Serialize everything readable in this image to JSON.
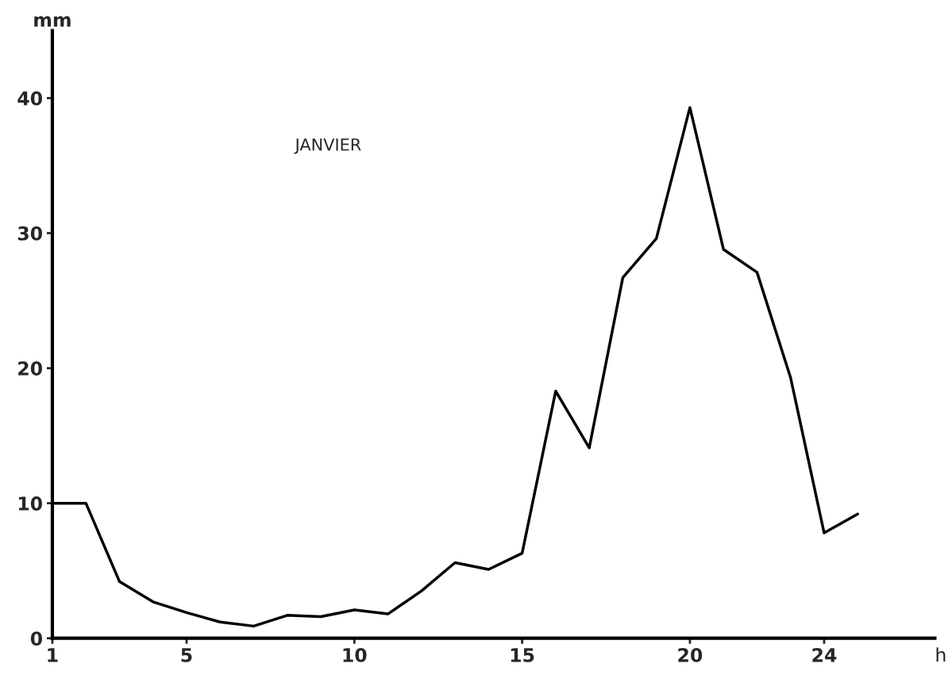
{
  "chart_data": {
    "type": "line",
    "ylabel": "mm",
    "xlabel": "h",
    "annotations": [
      "JANVIER"
    ],
    "x": [
      1,
      2,
      3,
      4,
      5,
      6,
      7,
      8,
      9,
      10,
      11,
      12,
      13,
      14,
      15,
      16,
      17,
      18,
      19,
      20,
      21,
      22,
      23,
      24,
      25
    ],
    "series": [
      {
        "color": "#000000",
        "values": [
          10,
          10,
          4.2,
          2.7,
          1.9,
          1.2,
          0.9,
          1.7,
          1.6,
          2.1,
          1.8,
          3.5,
          5.6,
          5.1,
          6.3,
          18.3,
          14.1,
          26.7,
          29.6,
          39.3,
          28.8,
          27.1,
          19.3,
          7.8,
          9.2
        ]
      }
    ],
    "xlim": [
      1,
      27.3
    ],
    "ylim": [
      0,
      45
    ],
    "xticks": [
      1,
      5,
      10,
      15,
      20,
      24
    ],
    "yticks": [
      0,
      10,
      20,
      30,
      40
    ],
    "grid": false,
    "marker": "none",
    "line_style": "solid"
  }
}
